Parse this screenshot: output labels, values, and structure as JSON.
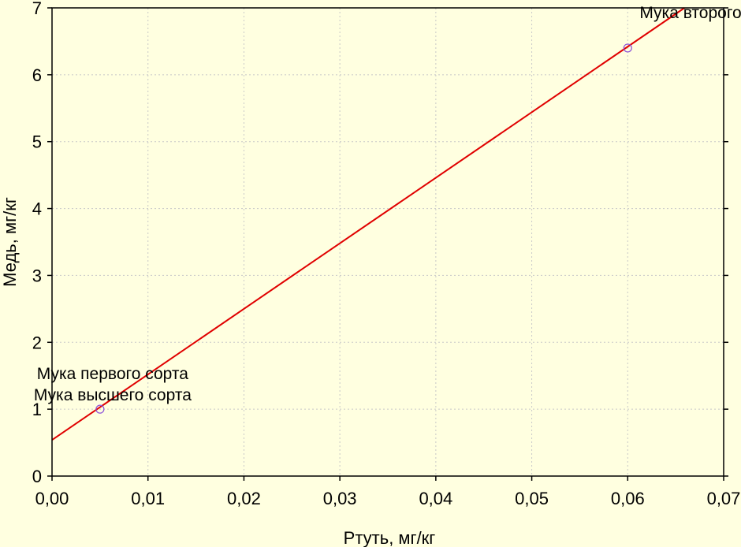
{
  "chart_data": {
    "type": "scatter",
    "xlabel": "Ртуть, мг/кг",
    "ylabel": "Медь, мг/кг",
    "xlim": [
      0,
      0.07
    ],
    "ylim": [
      0,
      7
    ],
    "grid": true,
    "x_ticks": [
      "0,00",
      "0,01",
      "0,02",
      "0,03",
      "0,04",
      "0,05",
      "0,06",
      "0,07"
    ],
    "y_ticks": [
      "0",
      "1",
      "2",
      "3",
      "4",
      "5",
      "6",
      "7"
    ],
    "points": [
      {
        "x": 0.005,
        "y": 1.0,
        "label": "Мука первого сорта"
      },
      {
        "x": 0.005,
        "y": 1.0,
        "label": "Мука высшего сорта"
      },
      {
        "x": 0.06,
        "y": 6.4,
        "label": "Мука второго сорта"
      }
    ],
    "fit_line": {
      "intercept": 0.54,
      "slope": 98.0
    },
    "colors": {
      "background": "#ffffe0",
      "line": "#e00000",
      "marker": "#8a4fd8"
    }
  }
}
